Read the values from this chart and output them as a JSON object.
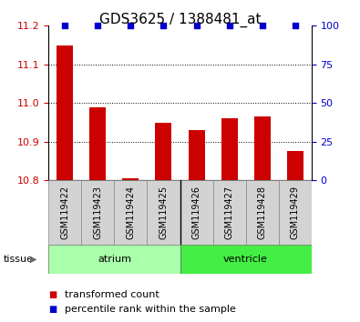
{
  "title": "GDS3625 / 1388481_at",
  "samples": [
    "GSM119422",
    "GSM119423",
    "GSM119424",
    "GSM119425",
    "GSM119426",
    "GSM119427",
    "GSM119428",
    "GSM119429"
  ],
  "transformed_counts": [
    11.15,
    10.99,
    10.805,
    10.95,
    10.93,
    10.96,
    10.965,
    10.875
  ],
  "percentile_ranks": [
    100,
    100,
    100,
    100,
    100,
    100,
    100,
    100
  ],
  "ylim_left": [
    10.8,
    11.2
  ],
  "ylim_right": [
    0,
    100
  ],
  "yticks_left": [
    10.8,
    10.9,
    11.0,
    11.1,
    11.2
  ],
  "yticks_right": [
    0,
    25,
    50,
    75,
    100
  ],
  "bar_color": "#CC0000",
  "dot_color": "#0000CC",
  "bar_bottom": 10.8,
  "atrium_color": "#AAFFAA",
  "ventricle_color": "#44EE44",
  "sample_bg_color": "#D3D3D3",
  "legend_items": [
    {
      "label": "transformed count",
      "color": "#CC0000"
    },
    {
      "label": "percentile rank within the sample",
      "color": "#0000CC"
    }
  ],
  "tissue_label": "tissue",
  "tick_color_left": "#CC0000",
  "tick_color_right": "#0000CC",
  "title_fontsize": 11,
  "tick_fontsize": 8,
  "sample_fontsize": 7,
  "legend_fontsize": 8
}
